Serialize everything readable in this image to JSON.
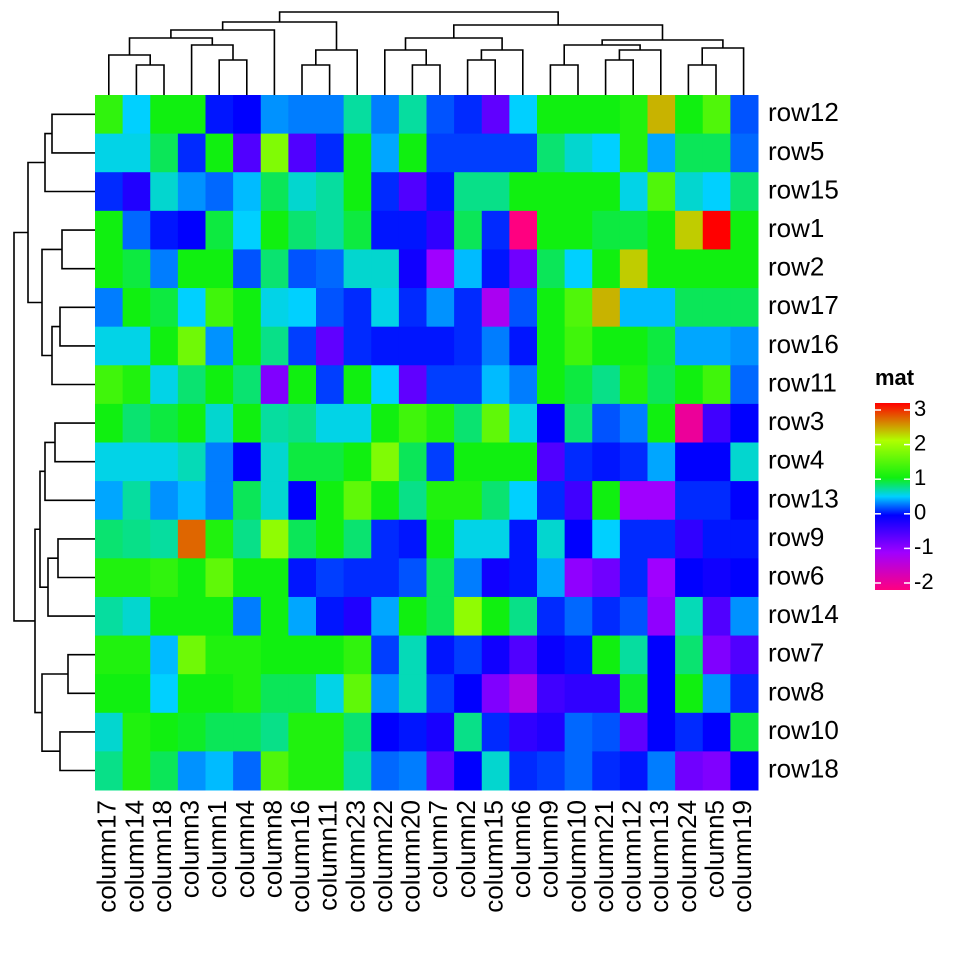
{
  "chart_data": {
    "type": "heatmap",
    "rows": [
      "row12",
      "row5",
      "row15",
      "row1",
      "row2",
      "row17",
      "row16",
      "row11",
      "row3",
      "row4",
      "row13",
      "row9",
      "row6",
      "row14",
      "row7",
      "row8",
      "row10",
      "row18"
    ],
    "columns": [
      "column17",
      "column14",
      "column18",
      "column3",
      "column1",
      "column4",
      "column8",
      "column16",
      "column11",
      "column23",
      "column22",
      "column20",
      "column7",
      "column2",
      "column15",
      "column6",
      "column9",
      "column10",
      "column21",
      "column12",
      "column13",
      "column24",
      "column5",
      "column19"
    ],
    "matrix": [
      [
        1.2,
        0.5,
        1,
        1,
        0.05,
        0,
        0.35,
        0.3,
        0.3,
        0.7,
        0.3,
        0.7,
        0.2,
        0.1,
        -0.6,
        0.5,
        1,
        1,
        1,
        1.1,
        2.3,
        1,
        1.4,
        0.2
      ],
      [
        0.55,
        0.55,
        0.85,
        0.1,
        1,
        -0.5,
        1.7,
        -0.5,
        0.1,
        1,
        0.4,
        1,
        0.15,
        0.15,
        0.15,
        0.15,
        0.8,
        0.6,
        0.5,
        1.1,
        0.4,
        0.85,
        0.85,
        0.25
      ],
      [
        0.1,
        -0.2,
        0.6,
        0.35,
        0.25,
        0.45,
        0.85,
        0.6,
        0.7,
        1,
        0.1,
        -0.5,
        0.05,
        0.75,
        0.75,
        1,
        1,
        1,
        1,
        0.55,
        1.4,
        0.6,
        0.5,
        0.8
      ],
      [
        1,
        0.25,
        0.05,
        0,
        0.9,
        0.5,
        1,
        0.8,
        0.7,
        0.9,
        0.05,
        0.05,
        -0.3,
        0.85,
        0.1,
        -2,
        1,
        1,
        0.9,
        0.9,
        1,
        2.2,
        3,
        1
      ],
      [
        1,
        0.9,
        0.3,
        1,
        1,
        0.2,
        0.8,
        0.2,
        0.25,
        0.6,
        0.6,
        -0.1,
        -1,
        0.45,
        0.05,
        -0.7,
        0.85,
        0.5,
        1,
        2.2,
        1,
        1,
        1,
        1
      ],
      [
        0.3,
        1,
        0.9,
        0.5,
        1.3,
        1,
        0.55,
        0.5,
        0.2,
        0.1,
        0.55,
        0.1,
        0.35,
        0.1,
        -1.1,
        0.2,
        1,
        1.4,
        2.3,
        0.45,
        0.45,
        0.85,
        0.85,
        0.85
      ],
      [
        0.55,
        0.55,
        1,
        1.6,
        0.35,
        1,
        0.75,
        0.15,
        -0.6,
        0.1,
        0.05,
        0.05,
        0.05,
        0.1,
        0.3,
        0.05,
        1,
        1.3,
        1,
        1,
        0.9,
        0.4,
        0.4,
        0.35
      ],
      [
        1.3,
        1.1,
        0.55,
        0.8,
        1,
        0.8,
        -0.8,
        1,
        0.15,
        1,
        0.5,
        -0.6,
        0.15,
        0.15,
        0.45,
        0.3,
        1,
        0.9,
        0.75,
        1.1,
        0.85,
        1,
        1.3,
        0.25
      ],
      [
        1,
        0.8,
        0.9,
        1,
        0.6,
        1,
        0.7,
        0.75,
        0.55,
        0.55,
        1,
        1.3,
        1.1,
        0.8,
        1.5,
        0.55,
        0,
        0.8,
        0.2,
        0.3,
        1,
        -1.8,
        -0.4,
        0
      ],
      [
        0.55,
        0.55,
        0.55,
        0.65,
        0.3,
        0,
        0.6,
        0.9,
        0.9,
        1,
        1.7,
        0.85,
        0.15,
        1,
        1,
        1,
        -0.5,
        0.1,
        0.05,
        0.1,
        0.4,
        0,
        0,
        0.6
      ],
      [
        0.4,
        0.7,
        0.35,
        0.45,
        0.3,
        0.85,
        0.6,
        0,
        1,
        1.5,
        1,
        0.75,
        1.1,
        1.1,
        0.8,
        0.5,
        0.1,
        -0.4,
        1,
        -1,
        -1,
        0.1,
        0.1,
        0
      ],
      [
        0.8,
        0.75,
        0.7,
        2.6,
        1.1,
        0.75,
        1.8,
        0.85,
        1,
        0.8,
        0.1,
        0.05,
        1,
        0.55,
        0.55,
        0.05,
        0.6,
        0,
        0.5,
        0.1,
        0.1,
        -0.3,
        0.05,
        0.05
      ],
      [
        1.1,
        1.1,
        1.2,
        1,
        1.5,
        1,
        1,
        0.05,
        0.15,
        0.1,
        0.1,
        0.2,
        0.85,
        0.3,
        -0.1,
        0.05,
        0.4,
        -0.9,
        -0.7,
        0.1,
        -1,
        0,
        -0.1,
        0
      ],
      [
        0.7,
        0.6,
        1,
        1,
        1,
        0.3,
        1,
        0.4,
        0.05,
        -0.2,
        0.4,
        1,
        0.85,
        1.8,
        1,
        0.75,
        0.1,
        0.25,
        0.1,
        0.2,
        -0.9,
        0.65,
        -0.5,
        0.35
      ],
      [
        1.1,
        1.1,
        0.45,
        1.6,
        1.1,
        1.1,
        1,
        1,
        1,
        1.2,
        0.15,
        0.65,
        0.05,
        0.15,
        -0.1,
        -0.5,
        -0.05,
        0.05,
        1,
        0.7,
        0,
        0.8,
        -0.8,
        -0.5
      ],
      [
        1,
        1,
        0.5,
        1,
        1,
        1.1,
        0.85,
        0.85,
        0.55,
        1.5,
        0.35,
        0.65,
        0.15,
        0,
        -0.8,
        -1.2,
        -0.4,
        -0.3,
        -0.3,
        0.95,
        0,
        1,
        0.35,
        0.1
      ],
      [
        0.6,
        1.1,
        1,
        0.95,
        0.85,
        0.85,
        0.75,
        1.1,
        1.1,
        0.8,
        0,
        0.05,
        -0.15,
        0.75,
        0.1,
        -0.3,
        -0.2,
        0.25,
        0.2,
        -0.6,
        0,
        0.1,
        0,
        0.9
      ],
      [
        0.75,
        1.1,
        0.85,
        0.35,
        0.45,
        0.25,
        1.4,
        1.1,
        1.1,
        0.7,
        0.25,
        0.3,
        -0.6,
        0,
        0.6,
        0.1,
        0.15,
        0.25,
        0.1,
        0.05,
        0.3,
        -0.7,
        -0.8,
        0
      ]
    ],
    "color_scale": {
      "breaks": [
        -2,
        -1,
        0,
        0.5,
        1,
        2,
        3
      ],
      "colors": [
        "#FF0080",
        "#A000FF",
        "#0000FF",
        "#00D0FF",
        "#10F010",
        "#B0FF00",
        "#FF0000"
      ]
    },
    "legend": {
      "title": "mat",
      "ticks": [
        -2,
        -1,
        0,
        1,
        2,
        3
      ]
    }
  }
}
